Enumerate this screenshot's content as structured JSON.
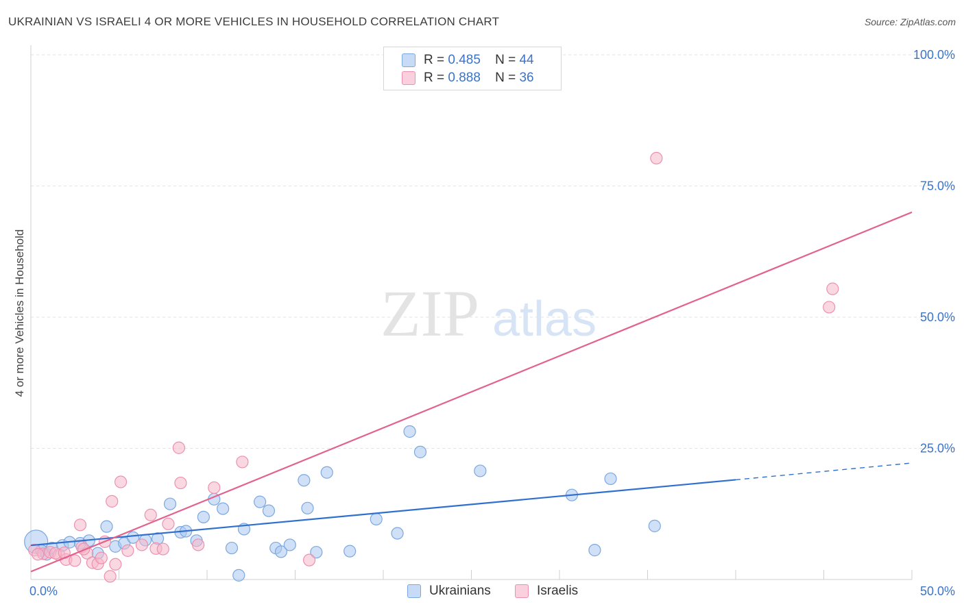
{
  "title": "UKRAINIAN VS ISRAELI 4 OR MORE VEHICLES IN HOUSEHOLD CORRELATION CHART",
  "source": "Source: ZipAtlas.com",
  "watermark": {
    "zip": "ZIP",
    "atlas": "atlas"
  },
  "legend": {
    "rows": [
      {
        "r_label": "R =",
        "r_value": "0.485",
        "n_label": "N =",
        "n_value": "44",
        "color": "#a9c8f0"
      },
      {
        "r_label": "R =",
        "r_value": "0.888",
        "n_label": "N =",
        "n_value": "36",
        "color": "#f5b8cb"
      }
    ]
  },
  "bottom_legend": [
    {
      "label": "Ukrainians",
      "color": "#a9c8f0"
    },
    {
      "label": "Israelis",
      "color": "#f5b8cb"
    }
  ],
  "chart_data": {
    "type": "scatter",
    "title": "UKRAINIAN VS ISRAELI 4 OR MORE VEHICLES IN HOUSEHOLD CORRELATION CHART",
    "xlabel": "",
    "ylabel": "4 or more Vehicles in Household",
    "xlim": [
      0,
      50
    ],
    "ylim": [
      0,
      100
    ],
    "x_tick_labels": {
      "min": "0.0%",
      "max": "50.0%"
    },
    "y_ticks": [
      {
        "value": 25,
        "label": "25.0%"
      },
      {
        "value": 50,
        "label": "50.0%"
      },
      {
        "value": 75,
        "label": "75.0%"
      },
      {
        "value": 100,
        "label": "100.0%"
      }
    ],
    "grid": true,
    "legend_position": "top-center",
    "series": [
      {
        "name": "Ukrainians",
        "color": "#7ba7e0",
        "fill": "#a9c8f0",
        "trend_color": "#2f6fcf",
        "trend": {
          "x0": 0,
          "y0": 6.5,
          "x1": 40,
          "y1": 19.0,
          "dashed_to_x": 50,
          "dashed_to_y": 22.2
        },
        "points": [
          [
            0.3,
            7.2
          ],
          [
            0.6,
            5.5
          ],
          [
            0.9,
            4.8
          ],
          [
            1.2,
            6.0
          ],
          [
            1.8,
            6.5
          ],
          [
            2.2,
            7.1
          ],
          [
            2.8,
            6.9
          ],
          [
            3.3,
            7.4
          ],
          [
            3.8,
            5.0
          ],
          [
            4.3,
            10.1
          ],
          [
            4.8,
            6.3
          ],
          [
            5.3,
            6.9
          ],
          [
            5.8,
            8.0
          ],
          [
            6.5,
            7.5
          ],
          [
            7.2,
            7.8
          ],
          [
            7.9,
            14.4
          ],
          [
            8.5,
            9.0
          ],
          [
            8.8,
            9.2
          ],
          [
            9.4,
            7.4
          ],
          [
            9.8,
            11.9
          ],
          [
            10.4,
            15.3
          ],
          [
            10.9,
            13.5
          ],
          [
            11.4,
            6.0
          ],
          [
            11.8,
            0.8
          ],
          [
            12.1,
            9.6
          ],
          [
            13.0,
            14.8
          ],
          [
            13.5,
            13.1
          ],
          [
            13.9,
            6.0
          ],
          [
            14.2,
            5.3
          ],
          [
            14.7,
            6.6
          ],
          [
            15.5,
            18.9
          ],
          [
            15.7,
            13.6
          ],
          [
            16.2,
            5.2
          ],
          [
            16.8,
            20.4
          ],
          [
            18.1,
            5.4
          ],
          [
            19.6,
            11.5
          ],
          [
            20.8,
            8.8
          ],
          [
            21.5,
            28.2
          ],
          [
            22.1,
            24.3
          ],
          [
            25.5,
            20.7
          ],
          [
            30.7,
            16.1
          ],
          [
            32.0,
            5.6
          ],
          [
            32.9,
            19.2
          ],
          [
            35.4,
            10.2
          ]
        ]
      },
      {
        "name": "Israelis",
        "color": "#ef8fae",
        "fill": "#f5b8cb",
        "trend_color": "#e2628d",
        "trend": {
          "x0": 0,
          "y0": 1.5,
          "x1": 50,
          "y1": 70.0
        },
        "points": [
          [
            0.2,
            5.6
          ],
          [
            0.7,
            4.9
          ],
          [
            1.1,
            5.2
          ],
          [
            1.6,
            4.7
          ],
          [
            2.0,
            3.8
          ],
          [
            2.5,
            3.6
          ],
          [
            2.9,
            6.2
          ],
          [
            3.2,
            5.0
          ],
          [
            3.5,
            3.2
          ],
          [
            3.8,
            3.0
          ],
          [
            4.0,
            4.1
          ],
          [
            4.2,
            7.2
          ],
          [
            2.8,
            10.4
          ],
          [
            4.5,
            0.6
          ],
          [
            4.6,
            14.9
          ],
          [
            4.8,
            2.9
          ],
          [
            5.1,
            18.6
          ],
          [
            5.5,
            5.5
          ],
          [
            6.3,
            6.6
          ],
          [
            6.8,
            12.3
          ],
          [
            7.1,
            5.9
          ],
          [
            7.5,
            5.8
          ],
          [
            7.8,
            10.6
          ],
          [
            8.4,
            25.1
          ],
          [
            8.5,
            18.4
          ],
          [
            9.5,
            6.6
          ],
          [
            10.4,
            17.5
          ],
          [
            12.0,
            22.4
          ],
          [
            15.8,
            3.7
          ],
          [
            35.5,
            80.3
          ],
          [
            45.3,
            51.9
          ],
          [
            45.5,
            55.4
          ],
          [
            1.4,
            5.0
          ],
          [
            0.4,
            4.8
          ],
          [
            3.0,
            5.8
          ],
          [
            1.9,
            5.1
          ]
        ]
      }
    ]
  }
}
